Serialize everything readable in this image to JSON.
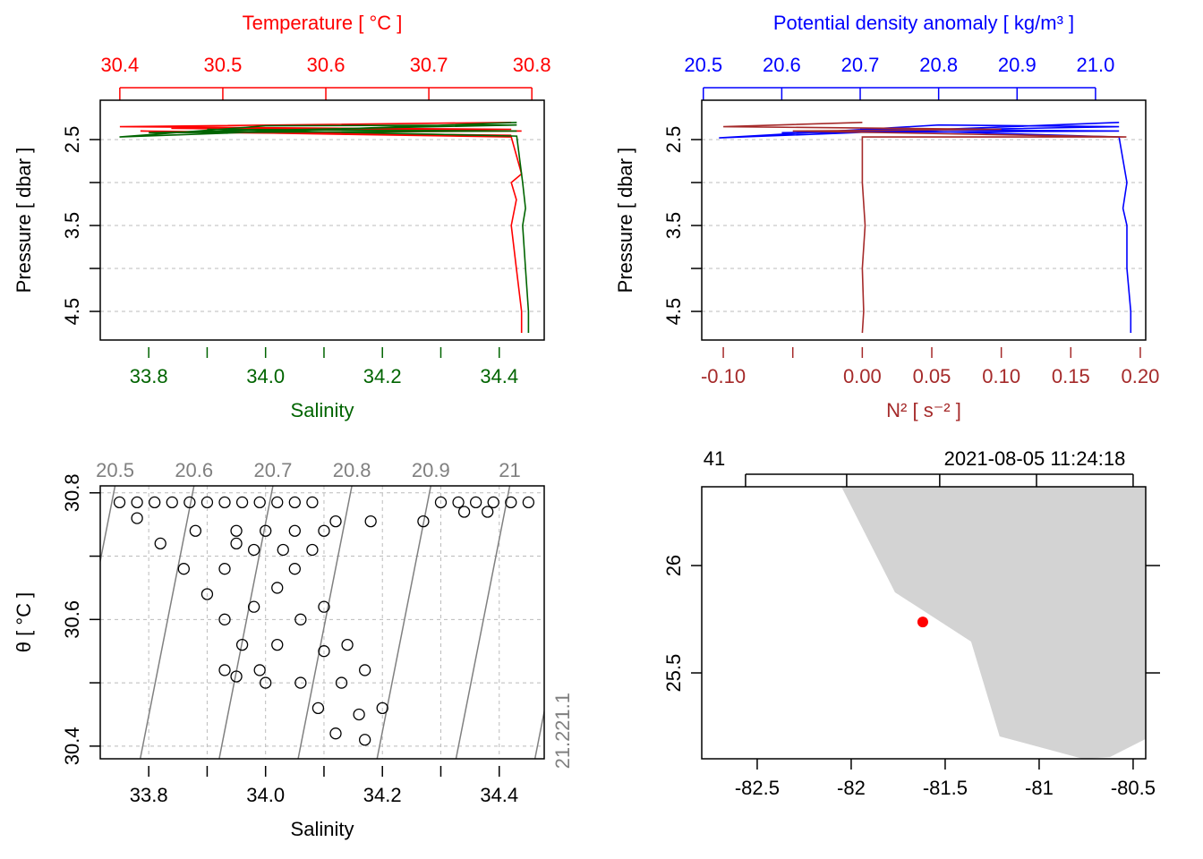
{
  "chart_data": [
    {
      "type": "profile",
      "x_label": "Salinity",
      "x2_label": "Temperature [ °C ]",
      "y_label": "Pressure [ dbar ]",
      "xlim": [
        33.717,
        34.477
      ],
      "x2lim": [
        30.381,
        30.812
      ],
      "ylim": [
        2.042,
        4.833
      ],
      "xticks": [
        33.8,
        {
          "value": 33.9,
          "label": null
        },
        {
          "value": 34,
          "label": "34.0"
        },
        {
          "value": 34.1,
          "label": null
        },
        34.2,
        {
          "value": 34.3,
          "label": null
        },
        34.4
      ],
      "x2ticks": [
        30.4,
        30.5,
        30.6,
        30.7,
        30.8
      ],
      "yticks": [
        2.5,
        {
          "value": 3,
          "label": null
        },
        3.5,
        {
          "value": 4,
          "label": null
        },
        4.5
      ],
      "grid": true,
      "series": [
        {
          "color": "red",
          "axis": "x2",
          "x": [
            30.78,
            30.4,
            30.78,
            30.45,
            30.79,
            30.5,
            30.78,
            30.42,
            30.78,
            30.79,
            30.78,
            30.785,
            30.78,
            30.785,
            30.79,
            30.79
          ],
          "values": [
            2.3,
            2.35,
            2.38,
            2.37,
            2.4,
            2.42,
            2.45,
            2.4,
            2.47,
            2.9,
            3.0,
            3.2,
            3.5,
            4.0,
            4.5,
            4.75
          ]
        },
        {
          "color": "darkgreen",
          "axis": "x",
          "x": [
            34.43,
            33.75,
            34.0,
            34.43,
            33.8,
            34.43,
            33.9,
            34.43,
            34.44,
            34.445,
            34.44,
            34.445,
            34.45,
            34.45
          ],
          "values": [
            2.3,
            2.47,
            2.34,
            2.33,
            2.42,
            2.4,
            2.38,
            2.46,
            3.0,
            3.3,
            3.5,
            4.0,
            4.5,
            4.75
          ]
        }
      ]
    },
    {
      "type": "profile",
      "x_label": "N² [ s⁻² ]",
      "x2_label": "Potential density anomaly [ kg/m³ ]",
      "y_label": "Pressure [ dbar ]",
      "xlim": [
        -0.1155,
        0.2039
      ],
      "x2lim": [
        20.498,
        21.064
      ],
      "ylim": [
        2.042,
        4.833
      ],
      "xticks": [
        {
          "value": -0.1,
          "label": "-0.10"
        },
        {
          "value": -0.05,
          "label": null
        },
        {
          "value": 0,
          "label": "0.00"
        },
        0.05,
        {
          "value": 0.1,
          "label": "0.10"
        },
        0.15,
        {
          "value": 0.2,
          "label": "0.20"
        }
      ],
      "x2ticks": [
        20.5,
        20.6,
        20.7,
        20.8,
        20.9,
        {
          "value": 21,
          "label": "21.0"
        }
      ],
      "yticks": [
        2.5,
        {
          "value": 3,
          "label": null
        },
        3.5,
        {
          "value": 4,
          "label": null
        },
        4.5
      ],
      "grid": true,
      "series": [
        {
          "color": "blue",
          "axis": "x2",
          "x": [
            21.03,
            20.52,
            20.8,
            21.03,
            20.6,
            21.03,
            20.7,
            21.03,
            21.04,
            21.035,
            21.04,
            21.04,
            21.045,
            21.045
          ],
          "values": [
            2.3,
            2.48,
            2.33,
            2.35,
            2.42,
            2.4,
            2.38,
            2.47,
            3.0,
            3.3,
            3.5,
            4.0,
            4.5,
            4.75
          ]
        },
        {
          "color": "brown",
          "axis": "x",
          "x": [
            0.0,
            -0.1,
            0.1,
            -0.05,
            0.19,
            0.0,
            0.0,
            0.002,
            0.0,
            0.001,
            0.0
          ],
          "values": [
            2.3,
            2.35,
            2.38,
            2.4,
            2.47,
            2.47,
            3.0,
            3.5,
            4.0,
            4.5,
            4.75
          ]
        }
      ]
    },
    {
      "type": "scatter",
      "x_label": "Salinity",
      "y_label": "θ [ °C ]",
      "xlim": [
        33.717,
        34.477
      ],
      "ylim": [
        30.38,
        30.811
      ],
      "xticks": [
        33.8,
        {
          "value": 33.9,
          "label": null
        },
        {
          "value": 34,
          "label": "34.0"
        },
        {
          "value": 34.1,
          "label": null
        },
        34.2,
        {
          "value": 34.3,
          "label": null
        },
        34.4
      ],
      "yticks": [
        30.4,
        {
          "value": 30.5,
          "label": null
        },
        30.6,
        {
          "value": 30.7,
          "label": null
        },
        30.8
      ],
      "grid": true,
      "color": "black",
      "isopycnal_color": "gray",
      "isopycnals": [
        20.5,
        20.6,
        20.7,
        20.8,
        20.9,
        21,
        21.1,
        21.2
      ],
      "x": [
        33.75,
        33.78,
        33.81,
        33.84,
        33.87,
        33.9,
        33.93,
        33.96,
        33.99,
        34.02,
        34.05,
        34.08,
        33.95,
        34.0,
        34.05,
        34.1,
        33.98,
        34.03,
        34.08,
        34.3,
        34.33,
        34.36,
        34.39,
        34.42,
        34.45,
        34.34,
        34.38,
        34.18,
        34.27,
        34.12,
        33.78,
        33.82,
        33.86,
        33.9,
        33.93,
        33.96,
        33.99,
        34.0,
        33.88,
        33.93,
        33.98,
        34.02,
        34.06,
        34.09,
        34.12,
        33.95,
        34.02,
        34.06,
        34.1,
        34.13,
        34.16,
        34.17,
        34.05,
        34.1,
        34.14,
        34.17,
        34.2,
        33.93,
        33.95
      ],
      "values": [
        30.785,
        30.785,
        30.785,
        30.785,
        30.785,
        30.785,
        30.785,
        30.785,
        30.785,
        30.785,
        30.785,
        30.785,
        30.74,
        30.74,
        30.74,
        30.74,
        30.71,
        30.71,
        30.71,
        30.785,
        30.785,
        30.785,
        30.785,
        30.785,
        30.785,
        30.77,
        30.77,
        30.755,
        30.755,
        30.755,
        30.76,
        30.72,
        30.68,
        30.64,
        30.6,
        30.56,
        30.52,
        30.5,
        30.74,
        30.68,
        30.62,
        30.56,
        30.5,
        30.46,
        30.42,
        30.72,
        30.65,
        30.6,
        30.55,
        30.5,
        30.45,
        30.41,
        30.68,
        30.62,
        30.56,
        30.52,
        30.46,
        30.52,
        30.51
      ]
    },
    {
      "type": "map",
      "xlim": [
        -82.795,
        -80.433
      ],
      "ylim": [
        25.1,
        26.367
      ],
      "xticks": [
        -82.5,
        -82,
        -81.5,
        -81,
        -80.5
      ],
      "x2ticks": [
        {
          "value": -82.562,
          "label": null
        },
        {
          "value": -82.024,
          "label": null
        },
        {
          "value": -81.529,
          "label": null
        },
        {
          "value": -81.014,
          "label": null
        },
        {
          "value": -80.5,
          "label": null
        }
      ],
      "yticks": [
        26,
        25.5
      ],
      "top_left": "41",
      "top_right": "2021-08-05 11:24:18",
      "land": {
        "color": "lightgray",
        "lon": [
          -82.052,
          -81.767,
          -81.362,
          -81.21,
          -80.767,
          -80.624,
          -80.433,
          -80.433
        ],
        "lat": [
          26.367,
          25.875,
          25.646,
          25.204,
          25.1,
          25.108,
          25.192,
          26.367
        ]
      },
      "station": {
        "color": "red",
        "lon": -81.619,
        "lat": 25.737
      }
    }
  ]
}
